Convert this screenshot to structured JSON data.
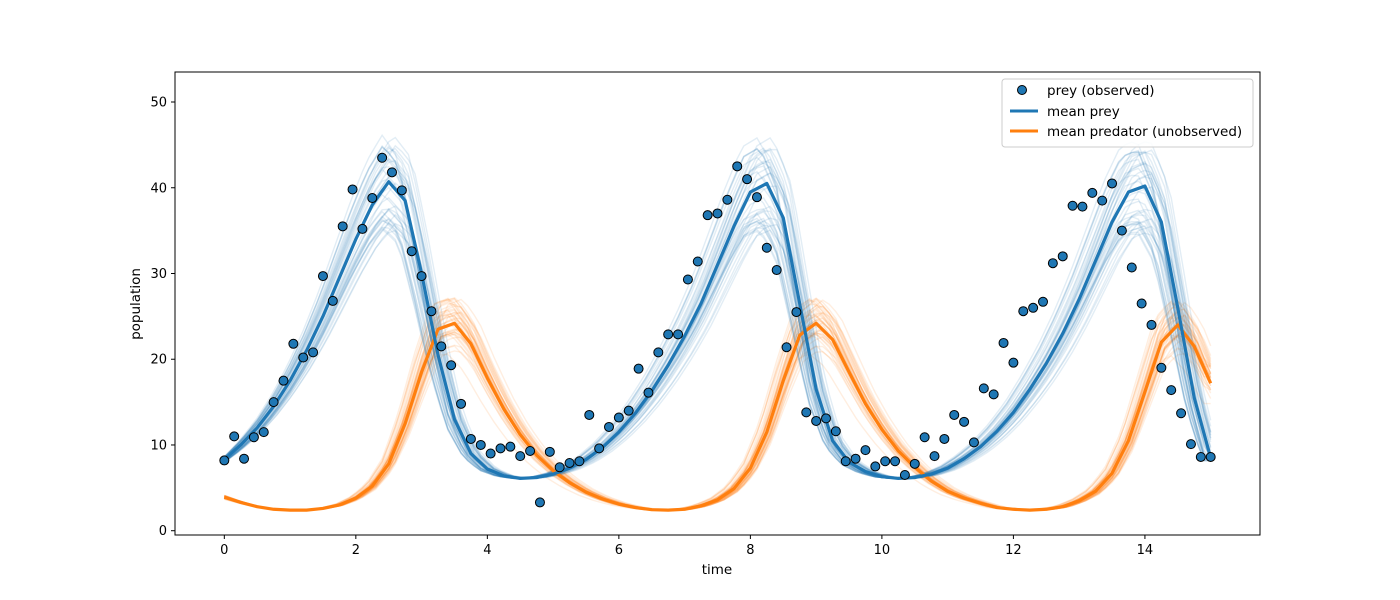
{
  "chart_data": {
    "type": "line",
    "title": "",
    "xlabel": "time",
    "ylabel": "population",
    "xlim": [
      -0.75,
      15.75
    ],
    "ylim": [
      -0.5,
      53.5
    ],
    "xticks": [
      "0",
      "2",
      "4",
      "6",
      "8",
      "10",
      "12",
      "14"
    ],
    "yticks": [
      "0",
      "10",
      "20",
      "30",
      "40",
      "50"
    ],
    "legend_position": "top-right",
    "grid": false,
    "colors": {
      "prey": "#1f77b4",
      "predator": "#ff7f0e"
    },
    "series": [
      {
        "name": "prey (observed)",
        "kind": "scatter",
        "x": [
          0.0,
          0.15,
          0.3,
          0.45,
          0.6,
          0.75,
          0.9,
          1.05,
          1.2,
          1.35,
          1.5,
          1.65,
          1.8,
          1.95,
          2.1,
          2.25,
          2.4,
          2.55,
          2.7,
          2.85,
          3.0,
          3.15,
          3.3,
          3.45,
          3.6,
          3.75,
          3.9,
          4.05,
          4.2,
          4.35,
          4.5,
          4.65,
          4.8,
          4.95,
          5.1,
          5.25,
          5.4,
          5.55,
          5.7,
          5.85,
          6.0,
          6.15,
          6.3,
          6.45,
          6.6,
          6.75,
          6.9,
          7.05,
          7.2,
          7.35,
          7.5,
          7.65,
          7.8,
          7.95,
          8.1,
          8.25,
          8.4,
          8.55,
          8.7,
          8.85,
          9.0,
          9.15,
          9.3,
          9.45,
          9.6,
          9.75,
          9.9,
          10.05,
          10.2,
          10.35,
          10.5,
          10.65,
          10.8,
          10.95,
          11.1,
          11.25,
          11.4,
          11.55,
          11.7,
          11.85,
          12.0,
          12.15,
          12.3,
          12.45,
          12.6,
          12.75,
          12.9,
          13.05,
          13.2,
          13.35,
          13.5,
          13.65,
          13.8,
          13.95,
          14.1,
          14.25,
          14.4,
          14.55,
          14.7,
          14.85,
          15.0
        ],
        "y": [
          8.2,
          11.0,
          8.4,
          10.9,
          11.5,
          15.0,
          17.5,
          21.8,
          20.2,
          20.8,
          29.7,
          26.8,
          35.5,
          39.8,
          35.2,
          38.8,
          43.5,
          41.8,
          39.7,
          32.6,
          29.7,
          25.6,
          21.5,
          19.3,
          14.8,
          10.7,
          10.0,
          9.0,
          9.6,
          9.8,
          8.7,
          9.3,
          3.3,
          9.2,
          7.4,
          7.9,
          8.1,
          13.5,
          9.6,
          12.1,
          13.2,
          14.0,
          18.9,
          16.1,
          20.8,
          22.9,
          22.9,
          29.3,
          31.4,
          36.8,
          37.0,
          38.6,
          42.5,
          41.0,
          38.9,
          33.0,
          30.4,
          21.4,
          25.5,
          13.8,
          12.8,
          13.1,
          11.6,
          8.1,
          8.4,
          9.4,
          7.5,
          8.1,
          8.1,
          6.5,
          7.8,
          10.9,
          8.7,
          10.7,
          13.5,
          12.7,
          10.3,
          16.6,
          15.9,
          21.9,
          19.6,
          25.6,
          26.0,
          26.7,
          31.2,
          32.0,
          37.9,
          37.8,
          39.4,
          38.5,
          40.5,
          35.0,
          30.7,
          26.5,
          24.0,
          19.0,
          16.4,
          13.7,
          10.1,
          8.6,
          8.6
        ]
      },
      {
        "name": "mean prey",
        "kind": "line",
        "x": [
          0.0,
          0.25,
          0.5,
          0.75,
          1.0,
          1.25,
          1.5,
          1.75,
          2.0,
          2.25,
          2.5,
          2.75,
          3.0,
          3.25,
          3.5,
          3.75,
          4.0,
          4.25,
          4.5,
          4.75,
          5.0,
          5.25,
          5.5,
          5.75,
          6.0,
          6.25,
          6.5,
          6.75,
          7.0,
          7.25,
          7.5,
          7.75,
          8.0,
          8.25,
          8.5,
          8.75,
          9.0,
          9.25,
          9.5,
          9.75,
          10.0,
          10.25,
          10.5,
          10.75,
          11.0,
          11.25,
          11.5,
          11.75,
          12.0,
          12.25,
          12.5,
          12.75,
          13.0,
          13.25,
          13.5,
          13.75,
          14.0,
          14.25,
          14.5,
          14.75,
          15.0
        ],
        "y": [
          8.3,
          10.0,
          12.0,
          14.5,
          17.5,
          21.0,
          25.0,
          29.5,
          34.0,
          38.0,
          40.7,
          38.5,
          30.0,
          20.5,
          13.0,
          9.0,
          7.2,
          6.4,
          6.1,
          6.2,
          6.6,
          7.3,
          8.3,
          9.7,
          11.5,
          13.7,
          16.3,
          19.3,
          22.7,
          26.5,
          31.0,
          35.5,
          39.5,
          40.5,
          36.5,
          26.5,
          16.5,
          10.5,
          8.0,
          6.9,
          6.3,
          6.1,
          6.2,
          6.6,
          7.3,
          8.4,
          9.8,
          11.6,
          13.8,
          16.5,
          19.5,
          23.0,
          27.0,
          31.5,
          36.0,
          39.5,
          40.2,
          36.0,
          26.0,
          15.5,
          8.5
        ]
      },
      {
        "name": "mean predator (unobserved)",
        "kind": "line",
        "x": [
          0.0,
          0.25,
          0.5,
          0.75,
          1.0,
          1.25,
          1.5,
          1.75,
          2.0,
          2.25,
          2.5,
          2.75,
          3.0,
          3.25,
          3.5,
          3.75,
          4.0,
          4.25,
          4.5,
          4.75,
          5.0,
          5.25,
          5.5,
          5.75,
          6.0,
          6.25,
          6.5,
          6.75,
          7.0,
          7.25,
          7.5,
          7.75,
          8.0,
          8.25,
          8.5,
          8.75,
          9.0,
          9.25,
          9.5,
          9.75,
          10.0,
          10.25,
          10.5,
          10.75,
          11.0,
          11.25,
          11.5,
          11.75,
          12.0,
          12.25,
          12.5,
          12.75,
          13.0,
          13.25,
          13.5,
          13.75,
          14.0,
          14.25,
          14.5,
          14.75,
          15.0
        ],
        "y": [
          3.9,
          3.3,
          2.8,
          2.5,
          2.4,
          2.4,
          2.6,
          3.0,
          3.8,
          5.2,
          7.8,
          12.5,
          18.5,
          23.5,
          24.2,
          21.8,
          17.8,
          14.2,
          11.2,
          8.8,
          7.0,
          5.6,
          4.5,
          3.7,
          3.1,
          2.7,
          2.45,
          2.4,
          2.5,
          2.9,
          3.6,
          4.9,
          7.3,
          11.5,
          17.5,
          22.8,
          24.2,
          22.3,
          18.5,
          14.8,
          11.8,
          9.3,
          7.4,
          5.8,
          4.6,
          3.8,
          3.2,
          2.7,
          2.5,
          2.4,
          2.5,
          2.8,
          3.5,
          4.6,
          6.7,
          10.5,
          16.2,
          22.0,
          24.0,
          21.5,
          17.2
        ]
      }
    ],
    "legend": [
      {
        "label": "prey (observed)",
        "marker": "circle"
      },
      {
        "label": "mean prey",
        "marker": "line"
      },
      {
        "label": "mean predator (unobserved)",
        "marker": "line"
      }
    ]
  }
}
